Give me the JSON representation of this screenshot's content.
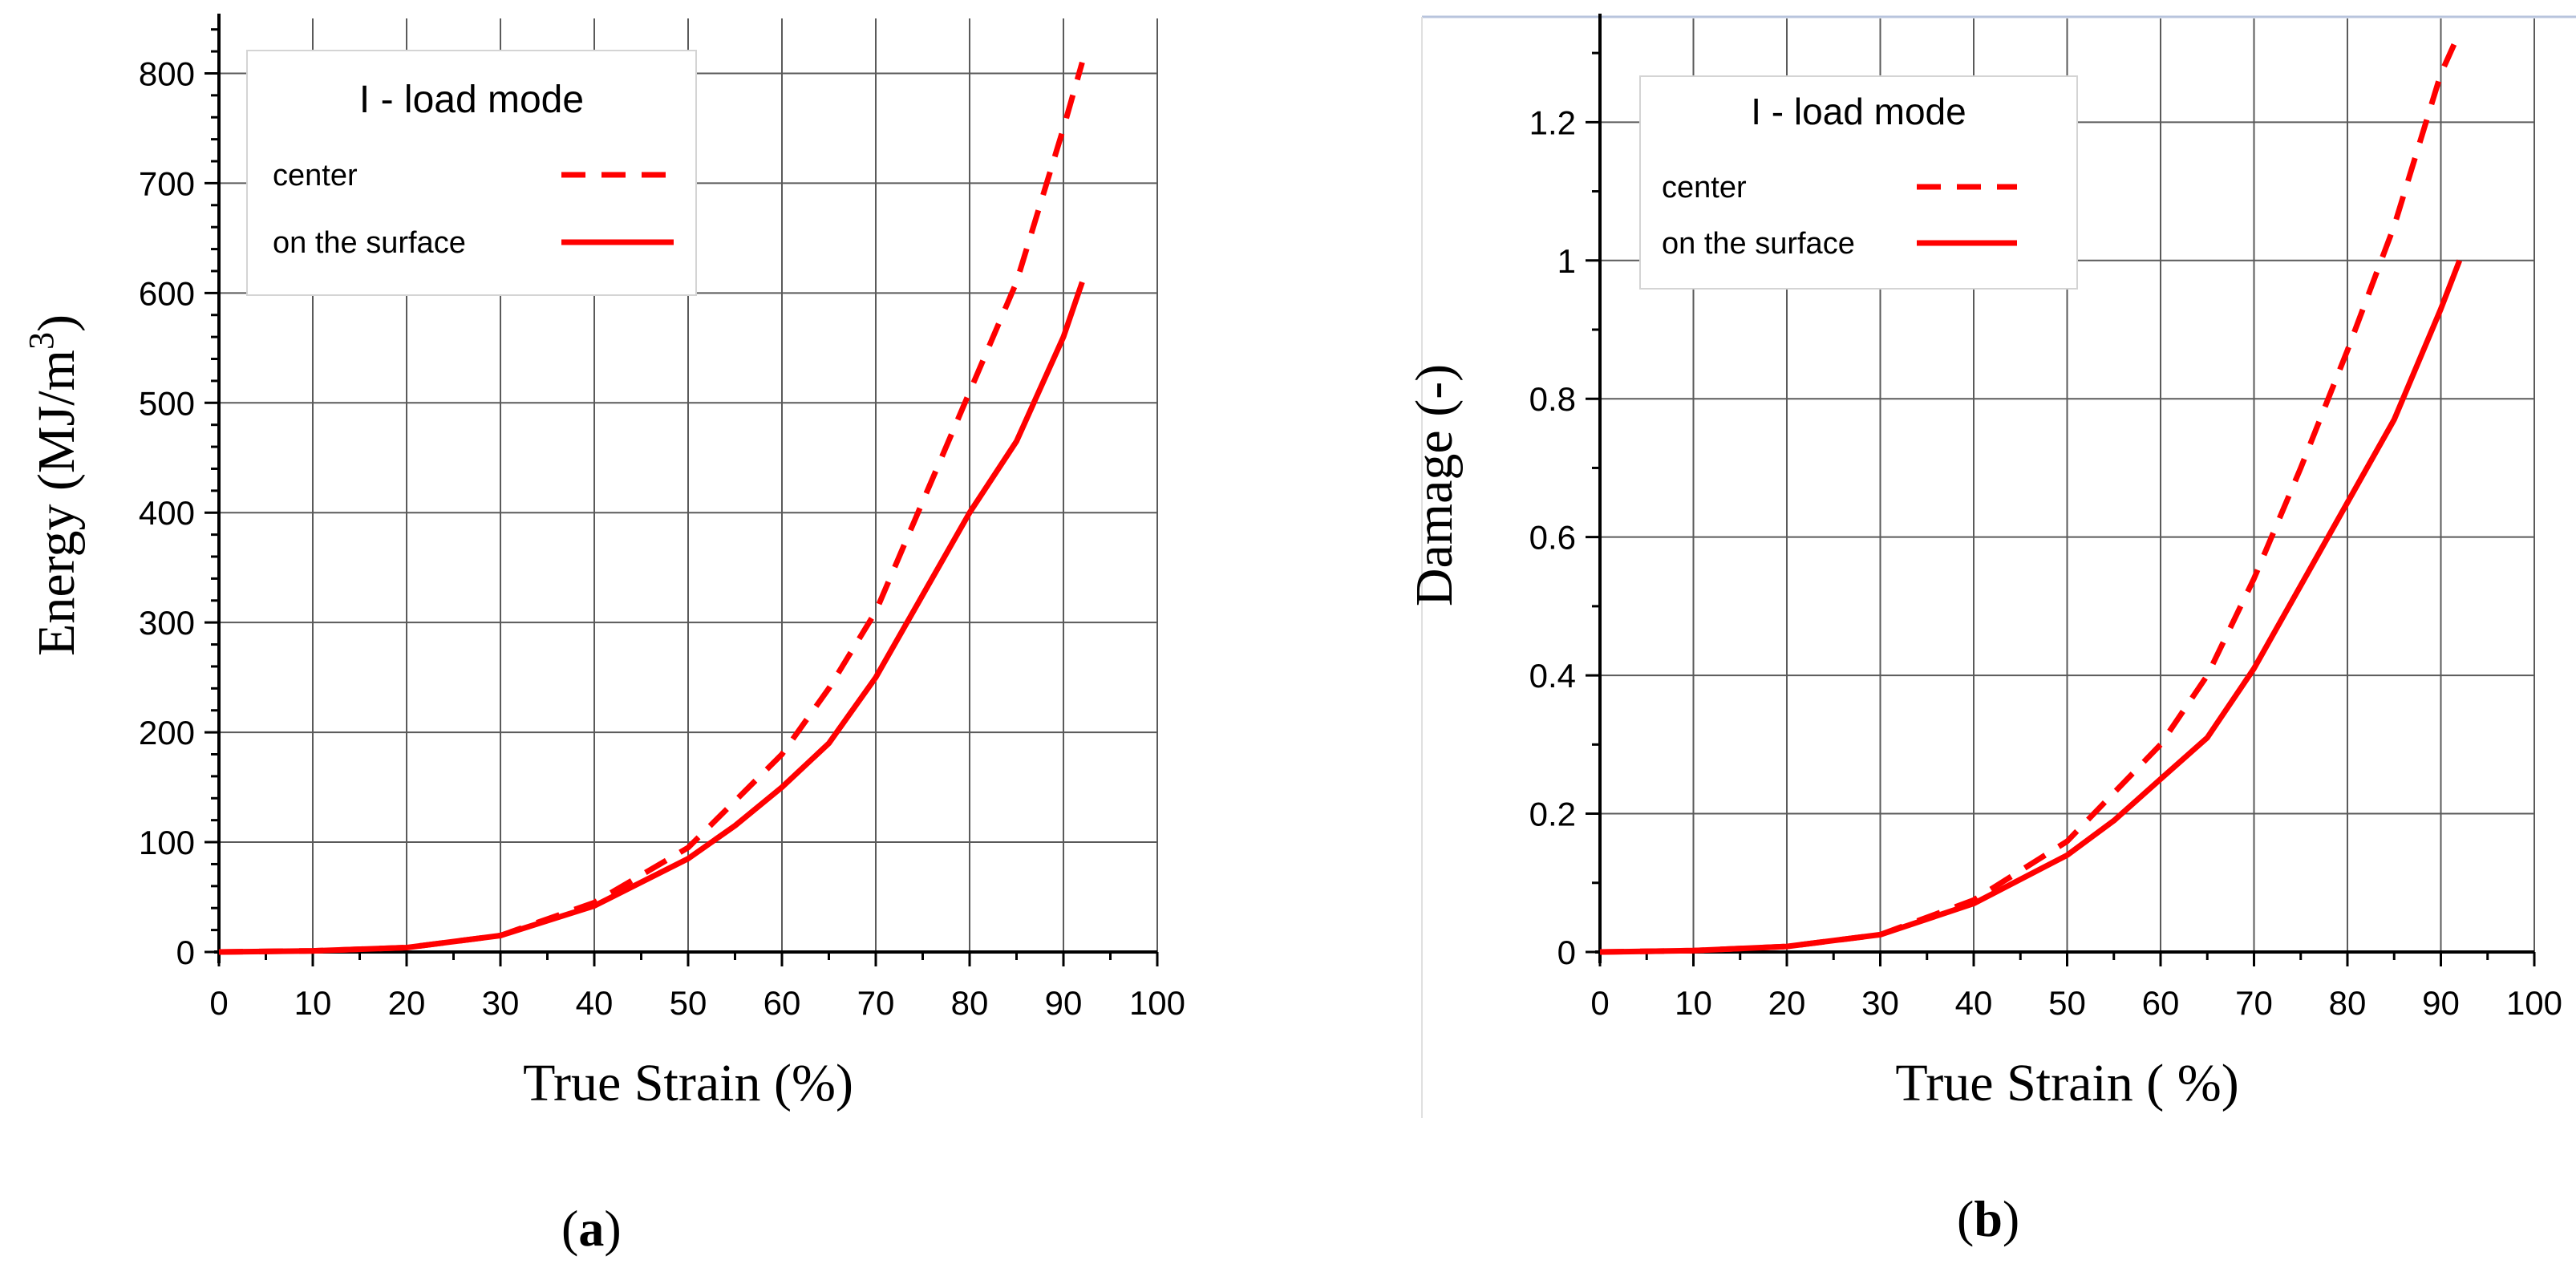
{
  "chart_data": [
    {
      "type": "line",
      "panel_label": "a",
      "xlabel": "True Strain (%)",
      "ylabel": "Energy (MJ/m",
      "ylabel_superscript": "3",
      "ylabel_suffix": ")",
      "xlim": [
        0,
        100
      ],
      "ylim": [
        0,
        850
      ],
      "xticks": [
        0,
        10,
        20,
        30,
        40,
        50,
        60,
        70,
        80,
        90,
        100
      ],
      "yticks": [
        0,
        100,
        200,
        300,
        400,
        500,
        600,
        700,
        800
      ],
      "ytick_labels": [
        "0",
        "100",
        "200",
        "300",
        "400",
        "500",
        "600",
        "700",
        "800"
      ],
      "grid": true,
      "legend": {
        "title": "I - load mode",
        "position": "top-left"
      },
      "series": [
        {
          "name": "center",
          "style": "dashed",
          "color": "#ff0000",
          "x": [
            0,
            10,
            20,
            30,
            40,
            50,
            60,
            65,
            70,
            75,
            80,
            85,
            90,
            92
          ],
          "y": [
            0,
            1,
            4,
            15,
            45,
            95,
            180,
            240,
            310,
            410,
            510,
            610,
            750,
            810
          ]
        },
        {
          "name": "on the surface",
          "style": "solid",
          "color": "#ff0000",
          "x": [
            0,
            10,
            20,
            30,
            40,
            50,
            55,
            60,
            65,
            70,
            75,
            80,
            85,
            90,
            92
          ],
          "y": [
            0,
            1,
            4,
            15,
            42,
            85,
            115,
            150,
            190,
            250,
            325,
            400,
            465,
            560,
            610
          ]
        }
      ]
    },
    {
      "type": "line",
      "panel_label": "b",
      "xlabel": "True Strain ( %)",
      "ylabel": "Damage (-)",
      "xlim": [
        0,
        100
      ],
      "ylim": [
        0,
        1.35
      ],
      "xticks": [
        0,
        10,
        20,
        30,
        40,
        50,
        60,
        70,
        80,
        90,
        100
      ],
      "yticks": [
        0,
        0.2,
        0.4,
        0.6,
        0.8,
        1.0,
        1.2
      ],
      "ytick_labels": [
        "0",
        "0.2",
        "0.4",
        "0.6",
        "0.8",
        "1",
        "1.2"
      ],
      "grid": true,
      "legend": {
        "title": "I - load mode",
        "position": "top-left"
      },
      "series": [
        {
          "name": "center",
          "style": "dashed",
          "color": "#ff0000",
          "x": [
            0,
            10,
            20,
            30,
            40,
            50,
            60,
            65,
            70,
            75,
            80,
            85,
            90,
            92
          ],
          "y": [
            0,
            0.002,
            0.008,
            0.025,
            0.075,
            0.16,
            0.3,
            0.4,
            0.54,
            0.7,
            0.87,
            1.05,
            1.27,
            1.33
          ]
        },
        {
          "name": "on the surface",
          "style": "solid",
          "color": "#ff0000",
          "x": [
            0,
            10,
            20,
            30,
            40,
            50,
            55,
            60,
            65,
            70,
            75,
            80,
            85,
            90,
            92
          ],
          "y": [
            0,
            0.002,
            0.008,
            0.025,
            0.07,
            0.14,
            0.19,
            0.25,
            0.31,
            0.41,
            0.53,
            0.65,
            0.77,
            0.93,
            1.0
          ]
        }
      ]
    }
  ]
}
